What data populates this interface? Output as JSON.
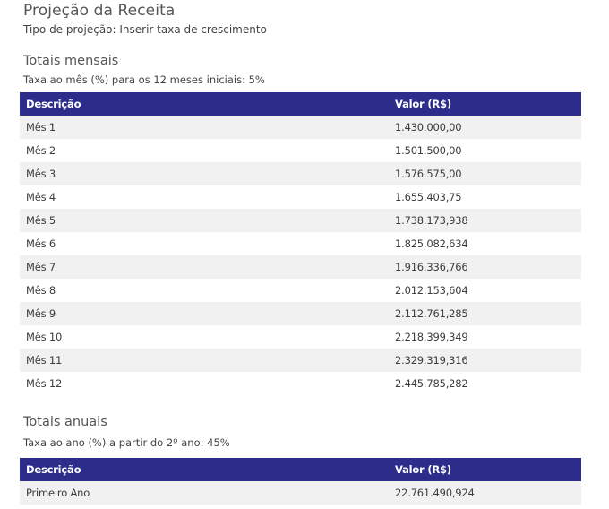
{
  "header": {
    "title": "Projeção da Receita",
    "projection_type": "Tipo de projeção: Inserir taxa de crescimento"
  },
  "monthly": {
    "title": "Totais mensais",
    "rate_note": "Taxa ao mês (%) para os 12 meses iniciais: 5%",
    "columns": [
      "Descrição",
      "Valor (R$)"
    ],
    "rows": [
      {
        "label": "Mês 1",
        "value": "1.430.000,00"
      },
      {
        "label": "Mês 2",
        "value": "1.501.500,00"
      },
      {
        "label": "Mês 3",
        "value": "1.576.575,00"
      },
      {
        "label": "Mês 4",
        "value": "1.655.403,75"
      },
      {
        "label": "Mês 5",
        "value": "1.738.173,938"
      },
      {
        "label": "Mês 6",
        "value": "1.825.082,634"
      },
      {
        "label": "Mês 7",
        "value": "1.916.336,766"
      },
      {
        "label": "Mês 8",
        "value": "2.012.153,604"
      },
      {
        "label": "Mês 9",
        "value": "2.112.761,285"
      },
      {
        "label": "Mês 10",
        "value": "2.218.399,349"
      },
      {
        "label": "Mês 11",
        "value": "2.329.319,316"
      },
      {
        "label": "Mês 12",
        "value": "2.445.785,282"
      }
    ]
  },
  "annual": {
    "title": "Totais anuais",
    "rate_note": "Taxa ao ano (%) a partir do 2º ano: 45%",
    "columns": [
      "Descrição",
      "Valor (R$)"
    ],
    "rows": [
      {
        "label": "Primeiro Ano",
        "value": "22.761.490,924"
      }
    ]
  }
}
